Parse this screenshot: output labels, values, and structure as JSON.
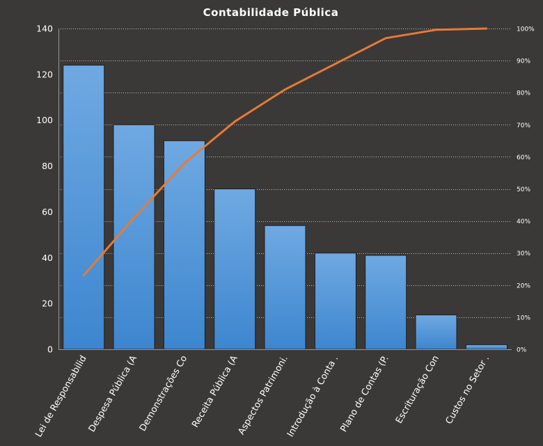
{
  "chart_data": {
    "type": "bar",
    "title": "Contabilidade  Pública",
    "categories": [
      "Lei de Responsabilid",
      "Despesa Pública (A",
      "Demonstrações Co",
      "Receita Pública (A",
      "Aspectos Patrimoni.",
      "Introdução à Conta .",
      "Plano de Contas (P.",
      "Escrituração Con",
      "Custos no Setor ."
    ],
    "values": [
      124,
      98,
      91,
      70,
      54,
      42,
      41,
      15,
      2
    ],
    "cumulative_percent": [
      23,
      41,
      58,
      71,
      81,
      89,
      97,
      99.6,
      100
    ],
    "ylim": [
      0,
      140
    ],
    "yticks": [
      0,
      20,
      40,
      60,
      80,
      100,
      120,
      140
    ],
    "y2lim": [
      0,
      100
    ],
    "y2ticks": [
      "0%",
      "10%",
      "20%",
      "30%",
      "40%",
      "50%",
      "60%",
      "70%",
      "80%",
      "90%",
      "100%"
    ],
    "grid": true,
    "colors": {
      "background": "#3a3938",
      "bar_top": "#6fa9e2",
      "bar_bottom": "#3d86cf",
      "bar_stroke": "#1e1e1e",
      "line": "#e87a35",
      "grid": "#bdbdbd",
      "text": "#ffffff"
    }
  }
}
